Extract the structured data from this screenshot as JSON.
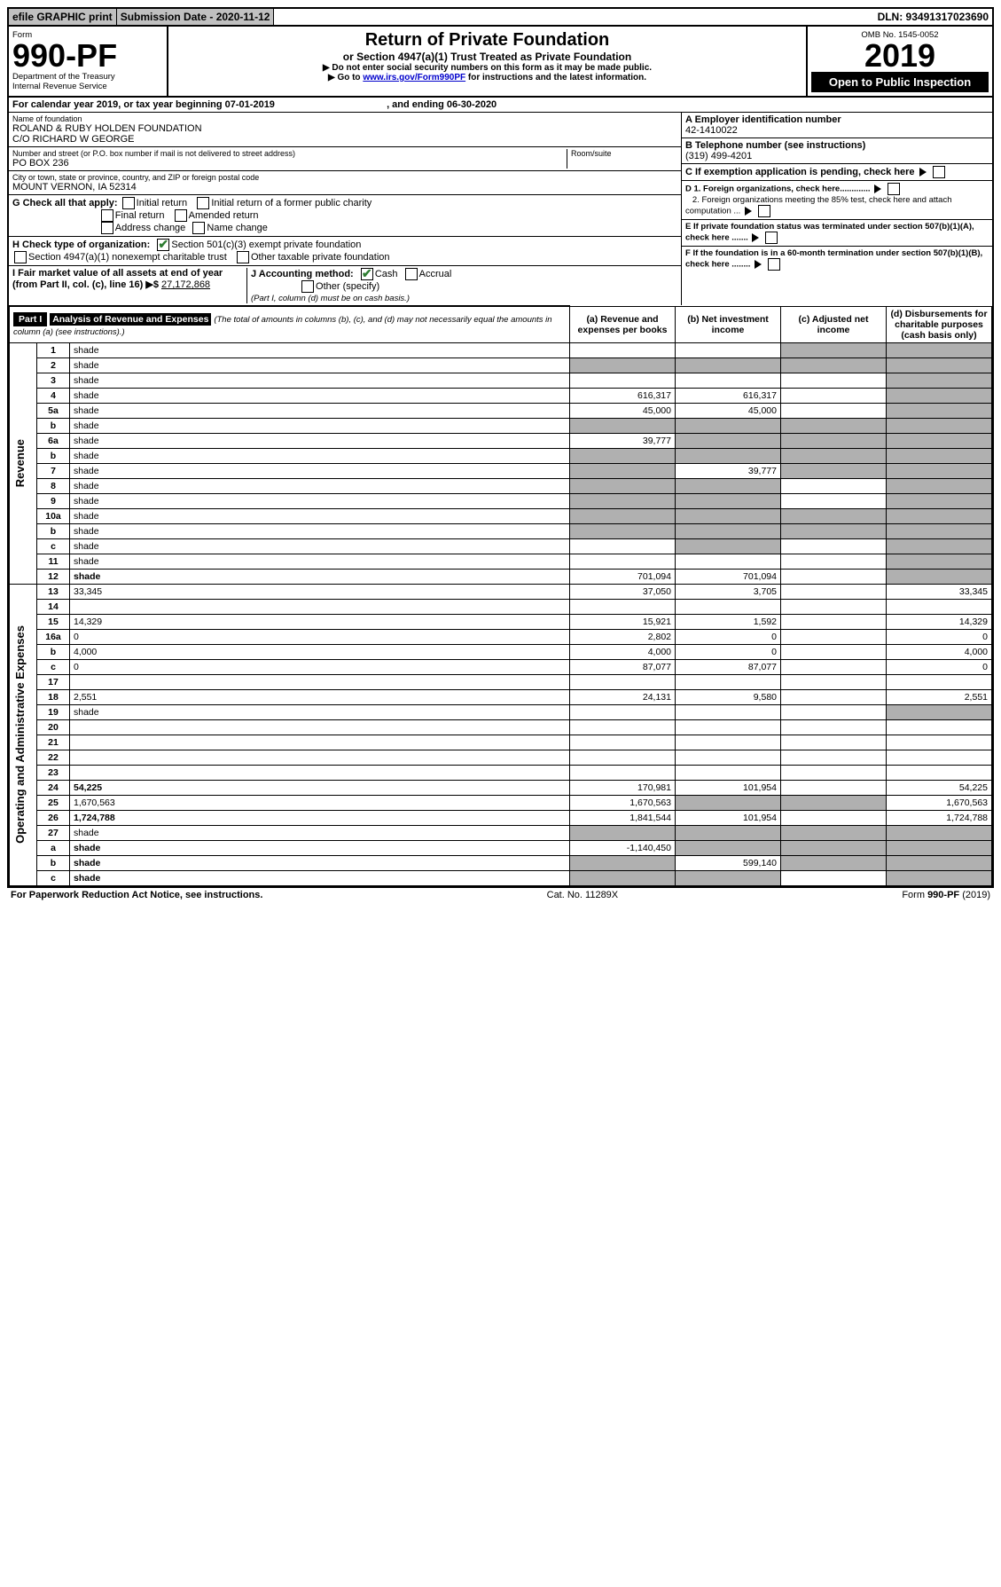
{
  "top": {
    "efile": "efile GRAPHIC print",
    "subdate_label": "Submission Date - 2020-11-12",
    "dln": "DLN: 93491317023690"
  },
  "header": {
    "form_word": "Form",
    "form_no": "990-PF",
    "dept": "Department of the Treasury",
    "irs": "Internal Revenue Service",
    "title": "Return of Private Foundation",
    "subtitle": "or Section 4947(a)(1) Trust Treated as Private Foundation",
    "note1": "▶ Do not enter social security numbers on this form as it may be made public.",
    "note2_a": "▶ Go to ",
    "note2_link": "www.irs.gov/Form990PF",
    "note2_b": " for instructions and the latest information.",
    "omb": "OMB No. 1545-0052",
    "year": "2019",
    "open": "Open to Public Inspection"
  },
  "calendar": {
    "text_a": "For calendar year 2019, or tax year beginning ",
    "begin": "07-01-2019",
    "text_b": " , and ending ",
    "end": "06-30-2020"
  },
  "id": {
    "name_label": "Name of foundation",
    "name1": "ROLAND & RUBY HOLDEN FOUNDATION",
    "name2": "C/O RICHARD W GEORGE",
    "addr_label": "Number and street (or P.O. box number if mail is not delivered to street address)",
    "room_label": "Room/suite",
    "addr": "PO BOX 236",
    "city_label": "City or town, state or province, country, and ZIP or foreign postal code",
    "city": "MOUNT VERNON, IA  52314",
    "a_label": "A Employer identification number",
    "ein": "42-1410022",
    "b_label": "B Telephone number (see instructions)",
    "phone": "(319) 499-4201",
    "c_label": "C If exemption application is pending, check here",
    "d1_label": "D 1. Foreign organizations, check here.............",
    "d2_label": "2. Foreign organizations meeting the 85% test, check here and attach computation ...",
    "e_label": "E  If private foundation status was terminated under section 507(b)(1)(A), check here .......",
    "f_label": "F  If the foundation is in a 60-month termination under section 507(b)(1)(B), check here ........"
  },
  "checks": {
    "g_label": "G Check all that apply:",
    "g1": "Initial return",
    "g2": "Initial return of a former public charity",
    "g3": "Final return",
    "g4": "Amended return",
    "g5": "Address change",
    "g6": "Name change",
    "h_label": "H Check type of organization:",
    "h1": "Section 501(c)(3) exempt private foundation",
    "h2": "Section 4947(a)(1) nonexempt charitable trust",
    "h3": "Other taxable private foundation",
    "i_label": "I Fair market value of all assets at end of year (from Part II, col. (c), line 16) ▶$ ",
    "i_value": "27,172,868",
    "j_label": "J Accounting method:",
    "j1": "Cash",
    "j2": "Accrual",
    "j3": "Other (specify)",
    "j_note": "(Part I, column (d) must be on cash basis.)"
  },
  "part1": {
    "label": "Part I",
    "title": "Analysis of Revenue and Expenses",
    "title_note": "(The total of amounts in columns (b), (c), and (d) may not necessarily equal the amounts in column (a) (see instructions).)",
    "col_a": "(a)   Revenue and expenses per books",
    "col_b": "(b)  Net investment income",
    "col_c": "(c)  Adjusted net income",
    "col_d": "(d)  Disbursements for charitable purposes (cash basis only)",
    "side_rev": "Revenue",
    "side_exp": "Operating and Administrative Expenses"
  },
  "rows": [
    {
      "n": "1",
      "d": "shade",
      "a": "",
      "b": "",
      "c": "shade"
    },
    {
      "n": "2",
      "d": "shade",
      "a": "shade",
      "b": "shade",
      "c": "shade",
      "bold_not": true
    },
    {
      "n": "3",
      "d": "shade",
      "a": "",
      "b": "",
      "c": ""
    },
    {
      "n": "4",
      "d": "shade",
      "a": "616,317",
      "b": "616,317",
      "c": ""
    },
    {
      "n": "5a",
      "d": "shade",
      "a": "45,000",
      "b": "45,000",
      "c": ""
    },
    {
      "n": "b",
      "d": "shade",
      "a": "shade",
      "b": "shade",
      "c": "shade"
    },
    {
      "n": "6a",
      "d": "shade",
      "a": "39,777",
      "b": "shade",
      "c": "shade"
    },
    {
      "n": "b",
      "d": "shade",
      "a": "shade",
      "b": "shade",
      "c": "shade"
    },
    {
      "n": "7",
      "d": "shade",
      "a": "shade",
      "b": "39,777",
      "c": "shade"
    },
    {
      "n": "8",
      "d": "shade",
      "a": "shade",
      "b": "shade",
      "c": ""
    },
    {
      "n": "9",
      "d": "shade",
      "a": "shade",
      "b": "shade",
      "c": ""
    },
    {
      "n": "10a",
      "d": "shade",
      "a": "shade",
      "b": "shade",
      "c": "shade"
    },
    {
      "n": "b",
      "d": "shade",
      "a": "shade",
      "b": "shade",
      "c": "shade"
    },
    {
      "n": "c",
      "d": "shade",
      "a": "",
      "b": "shade",
      "c": ""
    },
    {
      "n": "11",
      "d": "shade",
      "a": "",
      "b": "",
      "c": ""
    },
    {
      "n": "12",
      "d": "shade",
      "a": "701,094",
      "b": "701,094",
      "c": "",
      "bold": true
    }
  ],
  "exp_rows": [
    {
      "n": "13",
      "d": "33,345",
      "a": "37,050",
      "b": "3,705",
      "c": ""
    },
    {
      "n": "14",
      "d": "",
      "a": "",
      "b": "",
      "c": ""
    },
    {
      "n": "15",
      "d": "14,329",
      "a": "15,921",
      "b": "1,592",
      "c": ""
    },
    {
      "n": "16a",
      "d": "0",
      "a": "2,802",
      "b": "0",
      "c": ""
    },
    {
      "n": "b",
      "d": "4,000",
      "a": "4,000",
      "b": "0",
      "c": ""
    },
    {
      "n": "c",
      "d": "0",
      "a": "87,077",
      "b": "87,077",
      "c": ""
    },
    {
      "n": "17",
      "d": "",
      "a": "",
      "b": "",
      "c": ""
    },
    {
      "n": "18",
      "d": "2,551",
      "a": "24,131",
      "b": "9,580",
      "c": ""
    },
    {
      "n": "19",
      "d": "shade",
      "a": "",
      "b": "",
      "c": ""
    },
    {
      "n": "20",
      "d": "",
      "a": "",
      "b": "",
      "c": ""
    },
    {
      "n": "21",
      "d": "",
      "a": "",
      "b": "",
      "c": ""
    },
    {
      "n": "22",
      "d": "",
      "a": "",
      "b": "",
      "c": ""
    },
    {
      "n": "23",
      "d": "",
      "a": "",
      "b": "",
      "c": ""
    },
    {
      "n": "24",
      "d": "54,225",
      "a": "170,981",
      "b": "101,954",
      "c": "",
      "bold": true
    },
    {
      "n": "25",
      "d": "1,670,563",
      "a": "1,670,563",
      "b": "shade",
      "c": "shade"
    },
    {
      "n": "26",
      "d": "1,724,788",
      "a": "1,841,544",
      "b": "101,954",
      "c": "",
      "bold": true
    },
    {
      "n": "27",
      "d": "shade",
      "a": "shade",
      "b": "shade",
      "c": "shade"
    },
    {
      "n": "a",
      "d": "shade",
      "a": "-1,140,450",
      "b": "shade",
      "c": "shade",
      "bold": true
    },
    {
      "n": "b",
      "d": "shade",
      "a": "shade",
      "b": "599,140",
      "c": "shade",
      "bold": true
    },
    {
      "n": "c",
      "d": "shade",
      "a": "shade",
      "b": "shade",
      "c": "",
      "bold": true
    }
  ],
  "footer": {
    "left": "For Paperwork Reduction Act Notice, see instructions.",
    "center": "Cat. No. 11289X",
    "right": "Form 990-PF (2019)"
  },
  "colors": {
    "shade": "#b0b0b0",
    "check_green": "#2e7d32",
    "link_blue": "#0000cc"
  }
}
